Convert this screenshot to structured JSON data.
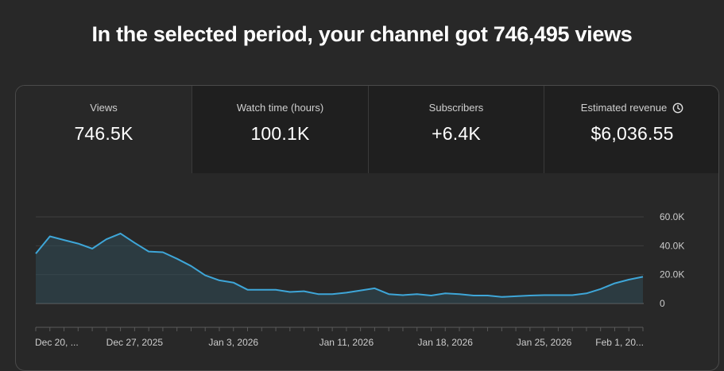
{
  "headline": "In the selected period, your channel got 746,495 views",
  "metrics": [
    {
      "label": "Views",
      "value": "746.5K",
      "active": true
    },
    {
      "label": "Watch time (hours)",
      "value": "100.1K"
    },
    {
      "label": "Subscribers",
      "value": "+6.4K"
    },
    {
      "label": "Estimated revenue",
      "value": "$6,036.55",
      "icon": "clock-icon"
    }
  ],
  "colors": {
    "line": "#3ea6d8",
    "area": "#2f4a56",
    "grid": "#3e3e3e",
    "axis_text": "#cccccc"
  },
  "chart_data": {
    "type": "area",
    "title": "",
    "xlabel": "",
    "ylabel": "",
    "y_tick_labels": [
      "60.0K",
      "40.0K",
      "20.0K",
      "0"
    ],
    "y_ticks": [
      60000,
      40000,
      20000,
      0
    ],
    "ylim": [
      0,
      60000
    ],
    "grid": true,
    "x_tick_labels": [
      "Dec 20, ...",
      "Dec 27, 2025",
      "Jan 3, 2026",
      "Jan 11, 2026",
      "Jan 18, 2026",
      "Jan 25, 2026",
      "Feb 1, 20..."
    ],
    "x_tick_index": [
      0,
      7,
      14,
      22,
      29,
      36,
      43
    ],
    "x": [
      "Dec 20, 2025",
      "Dec 21, 2025",
      "Dec 22, 2025",
      "Dec 23, 2025",
      "Dec 24, 2025",
      "Dec 25, 2025",
      "Dec 26, 2025",
      "Dec 27, 2025",
      "Dec 28, 2025",
      "Dec 29, 2025",
      "Dec 30, 2025",
      "Dec 31, 2025",
      "Jan 1, 2026",
      "Jan 2, 2026",
      "Jan 3, 2026",
      "Jan 4, 2026",
      "Jan 5, 2026",
      "Jan 6, 2026",
      "Jan 7, 2026",
      "Jan 8, 2026",
      "Jan 9, 2026",
      "Jan 10, 2026",
      "Jan 11, 2026",
      "Jan 12, 2026",
      "Jan 13, 2026",
      "Jan 14, 2026",
      "Jan 15, 2026",
      "Jan 16, 2026",
      "Jan 17, 2026",
      "Jan 18, 2026",
      "Jan 19, 2026",
      "Jan 20, 2026",
      "Jan 21, 2026",
      "Jan 22, 2026",
      "Jan 23, 2026",
      "Jan 24, 2026",
      "Jan 25, 2026",
      "Jan 26, 2026",
      "Jan 27, 2026",
      "Jan 28, 2026",
      "Jan 29, 2026",
      "Jan 30, 2026",
      "Jan 31, 2026",
      "Feb 1, 2026"
    ],
    "series": [
      {
        "values": [
          34500,
          46500,
          44000,
          41500,
          38000,
          44500,
          48500,
          42000,
          36000,
          35500,
          31000,
          26000,
          19500,
          16000,
          14500,
          9500,
          9500,
          9500,
          8000,
          8500,
          6500,
          6500,
          7500,
          9000,
          10500,
          6500,
          5800,
          6500,
          5500,
          7000,
          6500,
          5500,
          5500,
          4500,
          5000,
          5500,
          5800,
          5800,
          5800,
          7000,
          10000,
          14000,
          16500,
          18500
        ]
      }
    ]
  }
}
